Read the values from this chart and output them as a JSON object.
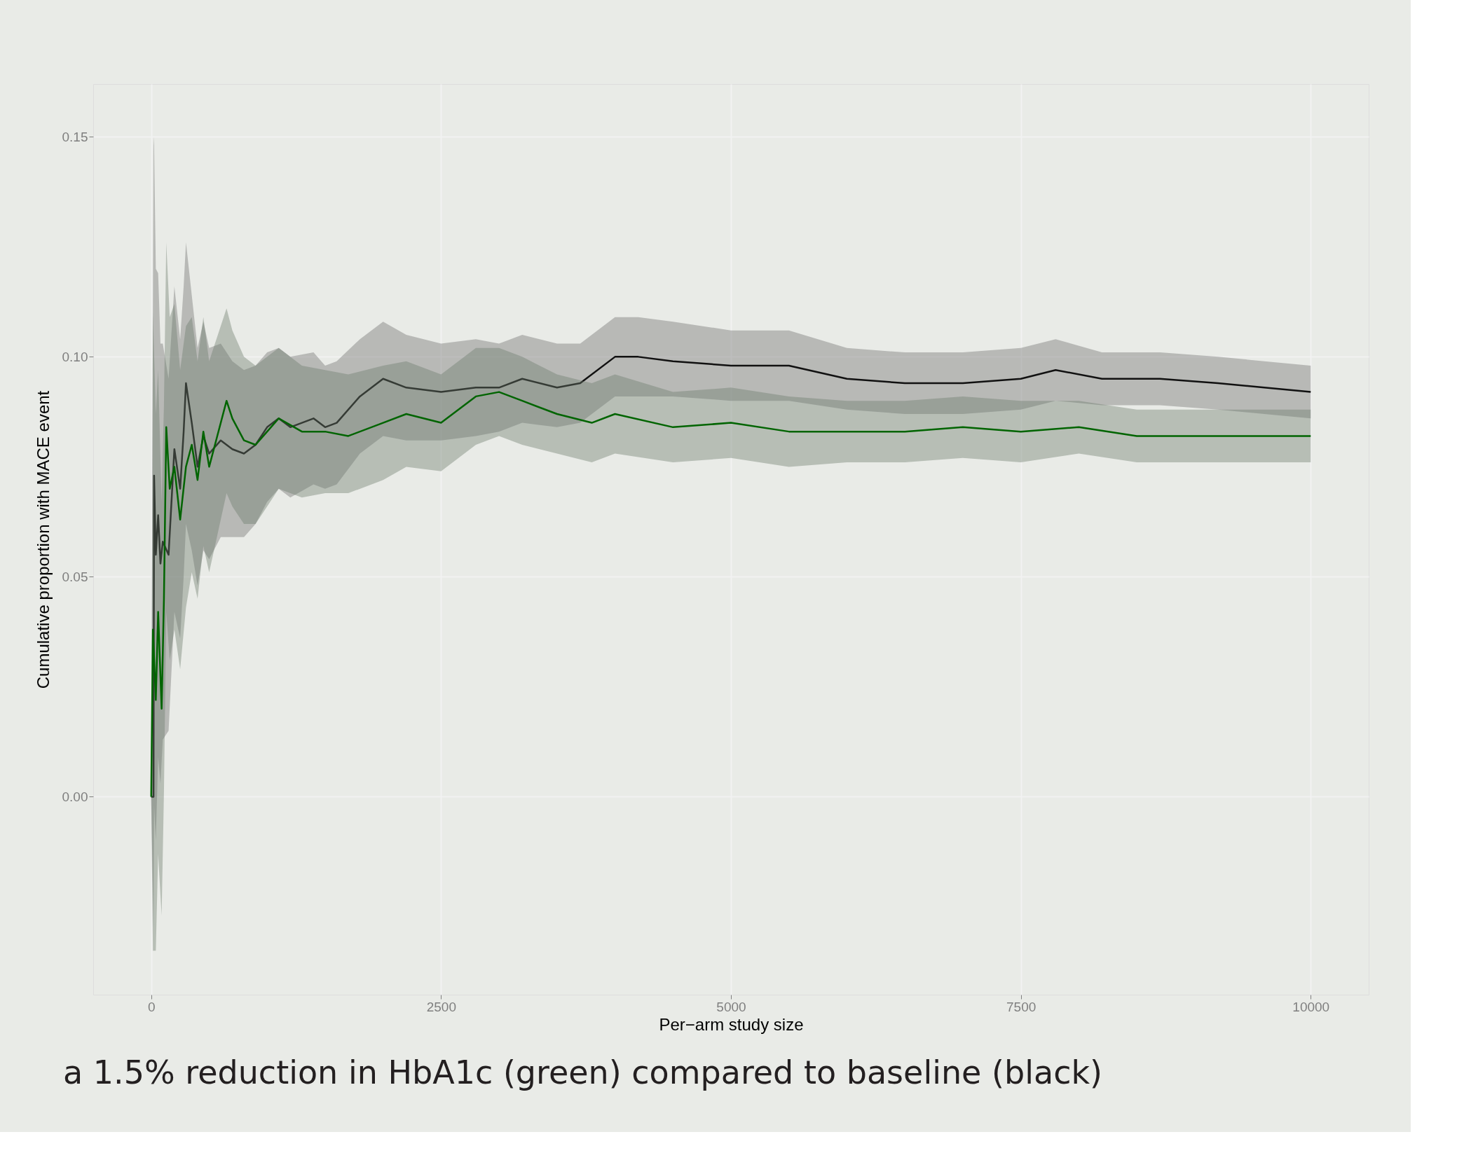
{
  "chart_data": {
    "type": "line",
    "xlabel": "Per−arm study size",
    "ylabel": "Cumulative proportion with MACE event",
    "xlim": [
      -500,
      10500
    ],
    "ylim": [
      -0.045,
      0.162
    ],
    "xticks": [
      {
        "value": 0,
        "label": "0"
      },
      {
        "value": 2500,
        "label": "2500"
      },
      {
        "value": 5000,
        "label": "5000"
      },
      {
        "value": 7500,
        "label": "7500"
      },
      {
        "value": 10000,
        "label": "10000"
      }
    ],
    "yticks": [
      {
        "value": 0,
        "label": "0.00"
      },
      {
        "value": 0.05,
        "label": "0.05"
      },
      {
        "value": 0.1,
        "label": "0.10"
      },
      {
        "value": 0.15,
        "label": "0.15"
      }
    ],
    "grid": true,
    "annotations": [
      "a 1.5% reduction in HbA1c (green) compared to baseline (black)"
    ],
    "series": [
      {
        "color": "#111111",
        "x": [
          0,
          20,
          25,
          40,
          60,
          80,
          100,
          150,
          200,
          250,
          280,
          300,
          350,
          400,
          450,
          500,
          600,
          700,
          800,
          900,
          1000,
          1100,
          1200,
          1400,
          1500,
          1600,
          1800,
          2000,
          2200,
          2500,
          2800,
          3000,
          3200,
          3500,
          3700,
          4000,
          4200,
          4500,
          5000,
          5500,
          6000,
          6500,
          7000,
          7500,
          7800,
          8200,
          8700,
          9200,
          9600,
          10000
        ],
        "values": [
          0,
          0,
          0.073,
          0.055,
          0.064,
          0.053,
          0.058,
          0.055,
          0.079,
          0.07,
          0.083,
          0.094,
          0.085,
          0.075,
          0.082,
          0.078,
          0.081,
          0.079,
          0.078,
          0.08,
          0.084,
          0.086,
          0.084,
          0.086,
          0.084,
          0.085,
          0.091,
          0.095,
          0.093,
          0.092,
          0.093,
          0.093,
          0.095,
          0.093,
          0.094,
          0.1,
          0.1,
          0.099,
          0.098,
          0.098,
          0.095,
          0.094,
          0.094,
          0.095,
          0.097,
          0.095,
          0.095,
          0.094,
          0.093,
          0.092
        ],
        "lower": [
          0,
          -0.03,
          -0.002,
          -0.01,
          0.009,
          0.003,
          0.013,
          0.015,
          0.042,
          0.036,
          0.05,
          0.062,
          0.056,
          0.048,
          0.056,
          0.054,
          0.059,
          0.059,
          0.059,
          0.062,
          0.067,
          0.07,
          0.068,
          0.071,
          0.07,
          0.071,
          0.078,
          0.082,
          0.081,
          0.081,
          0.082,
          0.083,
          0.085,
          0.084,
          0.085,
          0.091,
          0.091,
          0.091,
          0.09,
          0.09,
          0.088,
          0.087,
          0.087,
          0.088,
          0.09,
          0.089,
          0.089,
          0.088,
          0.087,
          0.086
        ],
        "upper": [
          0,
          0.15,
          0.148,
          0.12,
          0.119,
          0.103,
          0.103,
          0.095,
          0.116,
          0.104,
          0.116,
          0.126,
          0.114,
          0.102,
          0.108,
          0.102,
          0.103,
          0.099,
          0.097,
          0.098,
          0.101,
          0.102,
          0.1,
          0.101,
          0.098,
          0.099,
          0.104,
          0.108,
          0.105,
          0.103,
          0.104,
          0.103,
          0.105,
          0.103,
          0.103,
          0.109,
          0.109,
          0.108,
          0.106,
          0.106,
          0.102,
          0.101,
          0.101,
          0.102,
          0.104,
          0.101,
          0.101,
          0.1,
          0.099,
          0.098
        ]
      },
      {
        "color": "#006400",
        "x": [
          0,
          15,
          40,
          60,
          90,
          110,
          130,
          160,
          200,
          250,
          300,
          350,
          400,
          450,
          500,
          550,
          650,
          700,
          800,
          900,
          1000,
          1100,
          1300,
          1500,
          1700,
          2000,
          2200,
          2500,
          2800,
          3000,
          3200,
          3500,
          3800,
          4000,
          4500,
          5000,
          5500,
          6000,
          6500,
          7000,
          7500,
          8000,
          8500,
          9000,
          9500,
          10000
        ],
        "values": [
          0,
          0.038,
          0.022,
          0.042,
          0.02,
          0.045,
          0.084,
          0.07,
          0.075,
          0.063,
          0.075,
          0.08,
          0.072,
          0.083,
          0.075,
          0.08,
          0.09,
          0.086,
          0.081,
          0.08,
          0.083,
          0.086,
          0.083,
          0.083,
          0.082,
          0.085,
          0.087,
          0.085,
          0.091,
          0.092,
          0.09,
          0.087,
          0.085,
          0.087,
          0.084,
          0.085,
          0.083,
          0.083,
          0.083,
          0.084,
          0.083,
          0.084,
          0.082,
          0.082,
          0.082,
          0.082
        ],
        "lower": [
          0,
          -0.035,
          -0.035,
          -0.013,
          -0.027,
          0.001,
          0.042,
          0.031,
          0.038,
          0.029,
          0.043,
          0.051,
          0.045,
          0.057,
          0.051,
          0.057,
          0.069,
          0.066,
          0.062,
          0.062,
          0.066,
          0.07,
          0.068,
          0.069,
          0.069,
          0.072,
          0.075,
          0.074,
          0.08,
          0.082,
          0.08,
          0.078,
          0.076,
          0.078,
          0.076,
          0.077,
          0.075,
          0.076,
          0.076,
          0.077,
          0.076,
          0.078,
          0.076,
          0.076,
          0.076,
          0.076
        ],
        "upper": [
          0,
          0.11,
          0.087,
          0.097,
          0.067,
          0.089,
          0.126,
          0.109,
          0.112,
          0.097,
          0.107,
          0.109,
          0.099,
          0.109,
          0.099,
          0.103,
          0.111,
          0.106,
          0.1,
          0.098,
          0.1,
          0.102,
          0.098,
          0.097,
          0.096,
          0.098,
          0.099,
          0.096,
          0.102,
          0.102,
          0.1,
          0.096,
          0.094,
          0.096,
          0.092,
          0.093,
          0.091,
          0.09,
          0.09,
          0.091,
          0.09,
          0.09,
          0.088,
          0.088,
          0.088,
          0.088
        ]
      }
    ]
  }
}
